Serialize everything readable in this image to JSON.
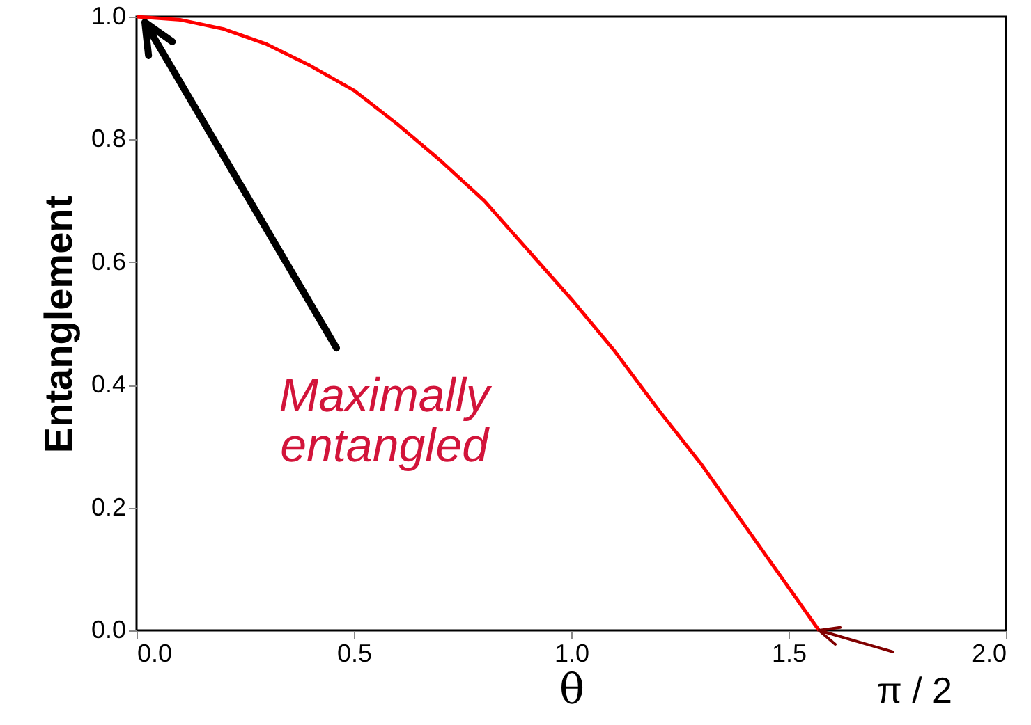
{
  "chart_data": {
    "type": "line",
    "xlabel": "θ",
    "ylabel": "Entanglement",
    "x": [
      0,
      0.1,
      0.2,
      0.3,
      0.4,
      0.5,
      0.6,
      0.7,
      0.8,
      0.9,
      1.0,
      1.1,
      1.2,
      1.3,
      1.4,
      1.5,
      1.57
    ],
    "series": [
      {
        "color": "#ff0000",
        "values": [
          1.0,
          0.995,
          0.98,
          0.955,
          0.92,
          0.88,
          0.825,
          0.765,
          0.7,
          0.62,
          0.54,
          0.455,
          0.36,
          0.27,
          0.17,
          0.07,
          0.0
        ]
      }
    ],
    "xlim": [
      0,
      2.0
    ],
    "ylim": [
      0,
      1.0
    ],
    "xticks": [
      {
        "value": 0,
        "label": "0.0"
      },
      {
        "value": 0.5,
        "label": "0.5"
      },
      {
        "value": 1.0,
        "label": "1.0"
      },
      {
        "value": 1.5,
        "label": "1.5"
      },
      {
        "value": 2.0,
        "label": "2.0"
      }
    ],
    "yticks": [
      {
        "value": 0,
        "label": "0.0"
      },
      {
        "value": 0.2,
        "label": "0.2"
      },
      {
        "value": 0.4,
        "label": "0.4"
      },
      {
        "value": 0.6,
        "label": "0.6"
      },
      {
        "value": 0.8,
        "label": "0.8"
      },
      {
        "value": 1.0,
        "label": "1.0"
      }
    ],
    "annotations": [
      "Maximally\nentangled",
      {
        "text": "π / 2",
        "x": 1.57,
        "y": 0
      }
    ],
    "grid": false,
    "legend": false,
    "marker": "none",
    "line_style": "solid"
  }
}
